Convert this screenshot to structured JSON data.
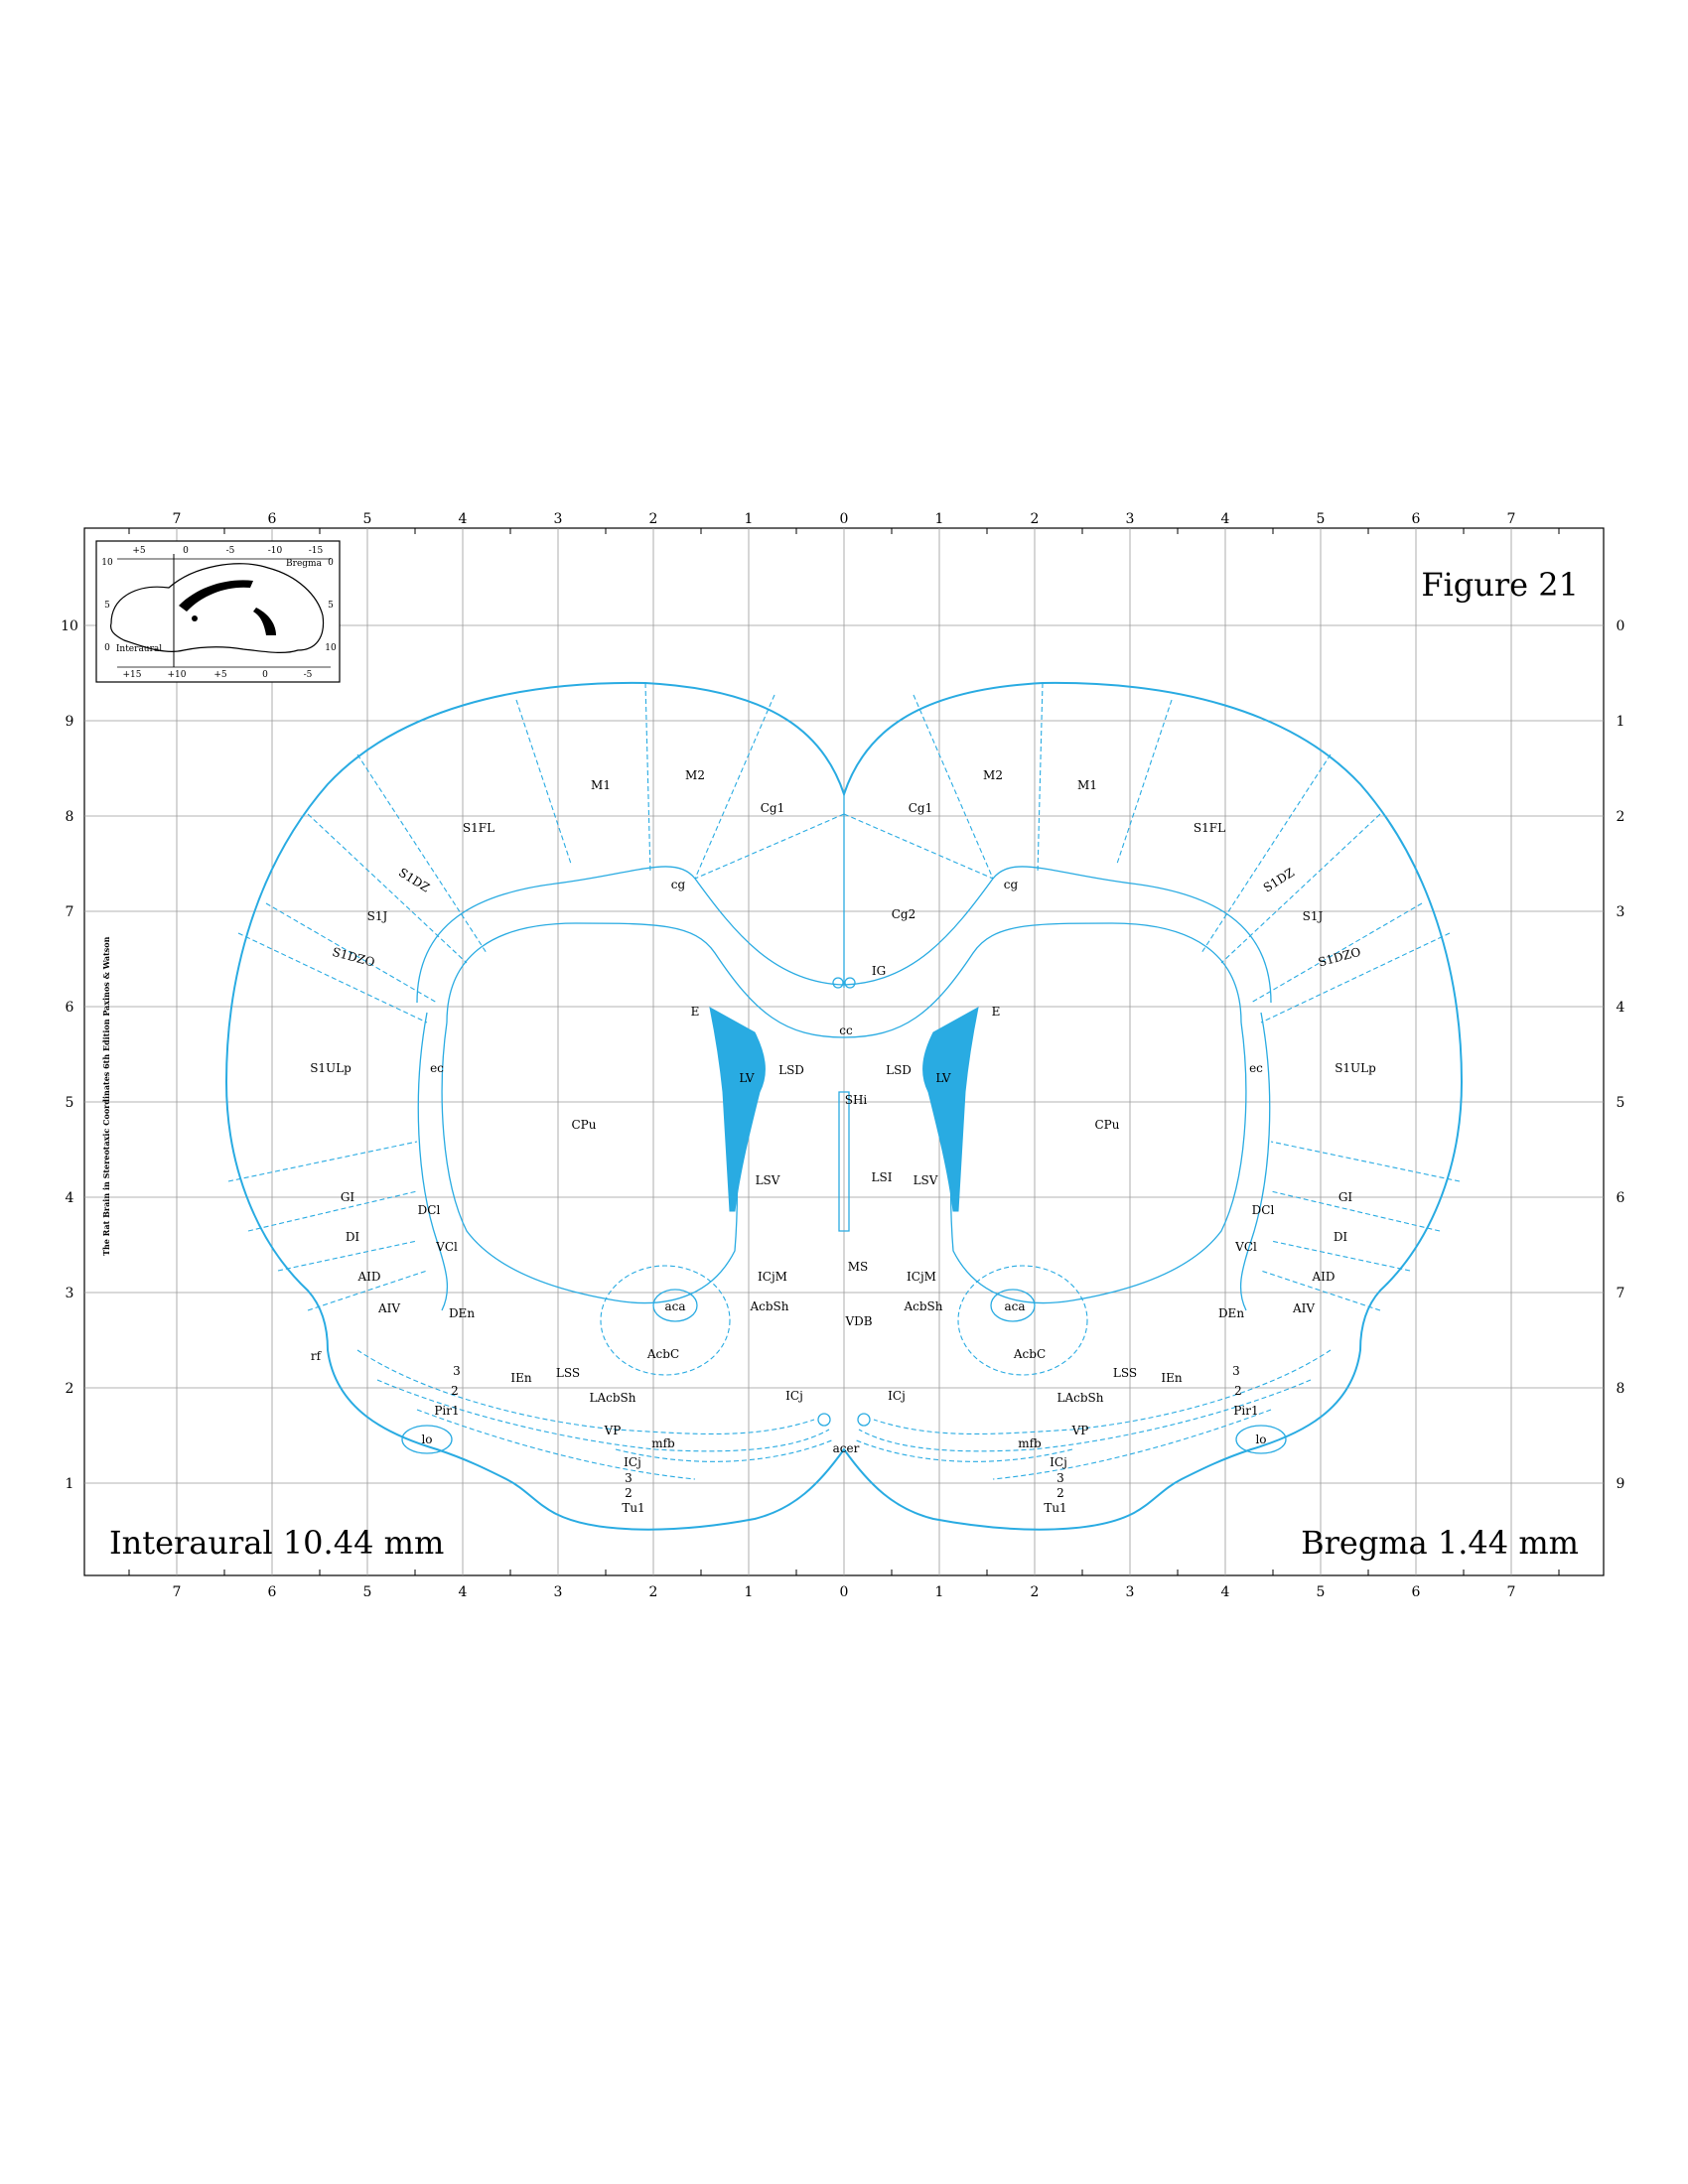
{
  "figure_title": "Figure 21",
  "interaural_label": "Interaural 10.44 mm",
  "bregma_label": "Bregma 1.44 mm",
  "side_credit": "The Rat Brain in Stereotaxic Coordinates 6th Edition  Paxinos & Watson",
  "top_axis_ticks": [
    "7",
    "6",
    "5",
    "4",
    "3",
    "2",
    "1",
    "0",
    "1",
    "2",
    "3",
    "4",
    "5",
    "6",
    "7"
  ],
  "bottom_axis_ticks": [
    "7",
    "6",
    "5",
    "4",
    "3",
    "2",
    "1",
    "0",
    "1",
    "2",
    "3",
    "4",
    "5",
    "6",
    "7"
  ],
  "left_axis_ticks": [
    "10",
    "9",
    "8",
    "7",
    "6",
    "5",
    "4",
    "3",
    "2",
    "1"
  ],
  "right_axis_ticks": [
    "0",
    "1",
    "2",
    "3",
    "4",
    "5",
    "6",
    "7",
    "8",
    "9"
  ],
  "inset": {
    "top_ticks": [
      "+5",
      "0",
      "-5",
      "-10",
      "-15"
    ],
    "bottom_ticks": [
      "+15",
      "+10",
      "+5",
      "0",
      "-5"
    ],
    "left_ticks": [
      "10",
      "5",
      "0"
    ],
    "right_ticks": [
      "0",
      "5",
      "10"
    ],
    "bregma": "Bregma",
    "interaural": "Interaural"
  },
  "regions": [
    "M1",
    "M2",
    "Cg1",
    "Cg2",
    "cg",
    "S1FL",
    "S1DZ",
    "S1J",
    "S1DZO",
    "S1ULp",
    "IG",
    "E",
    "cc",
    "LV",
    "LSD",
    "SHi",
    "LSI",
    "LSV",
    "CPu",
    "ec",
    "GI",
    "DI",
    "DCl",
    "VCl",
    "AID",
    "AIV",
    "DEn",
    "rf",
    "ICjM",
    "AcbSh",
    "MS",
    "aca",
    "AcbC",
    "VDB",
    "LSS",
    "IEn",
    "LAcbSh",
    "ICj",
    "3",
    "2",
    "Pir1",
    "VP",
    "mfb",
    "acer",
    "lo",
    "Tu1"
  ],
  "colors": {
    "outline": "#29abe2",
    "ventricle_fill": "#29abe2",
    "grid": "#9a9a9a"
  }
}
